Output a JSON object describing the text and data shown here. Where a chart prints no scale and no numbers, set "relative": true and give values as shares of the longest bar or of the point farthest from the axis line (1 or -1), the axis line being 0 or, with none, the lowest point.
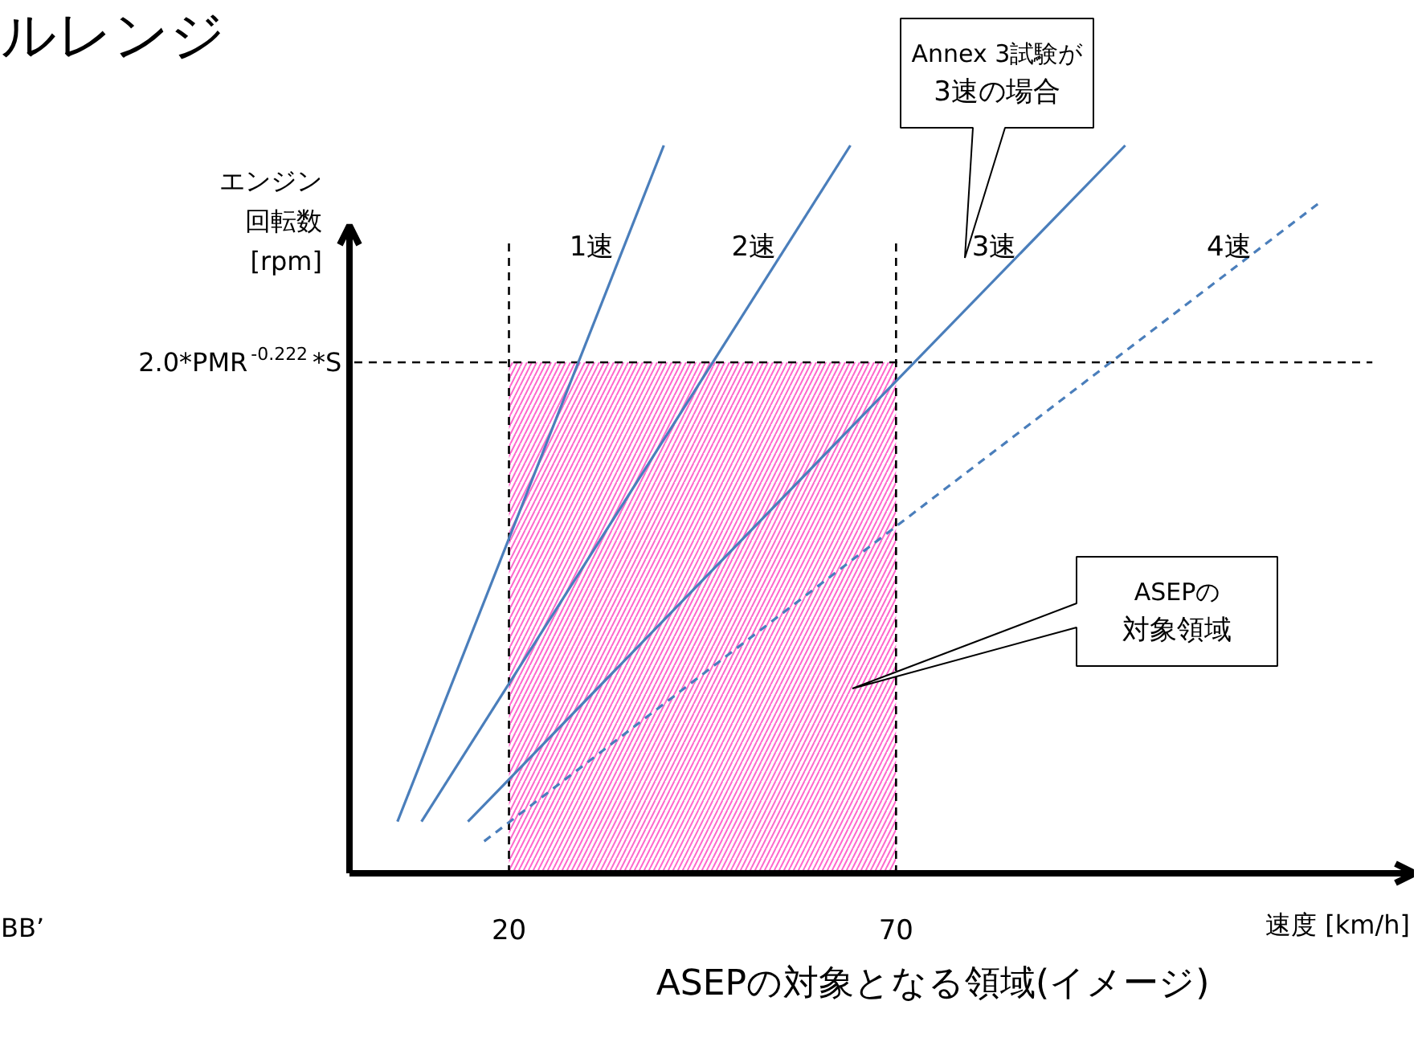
{
  "chart_data": {
    "type": "line",
    "title": "ルレンジ",
    "xlabel": "速度 [km/h]",
    "ylabel": "エンジン回転数[rpm]",
    "relative": true,
    "xlim": [
      -0.6,
      137
    ],
    "xticks": [
      20,
      70
    ],
    "grid": false,
    "series": [
      {
        "name": "1速",
        "color": "#4a7ebb",
        "x": [
          5.6,
          40.0
        ],
        "values": [
          0.071,
          1.0
        ]
      },
      {
        "name": "2速",
        "color": "#4a7ebb",
        "x": [
          8.7,
          64.1
        ],
        "values": [
          0.071,
          1.0
        ]
      },
      {
        "name": "3速",
        "color": "#4a7ebb",
        "x": [
          14.7,
          99.6
        ],
        "values": [
          0.071,
          1.0
        ]
      },
      {
        "name": "4速",
        "color": "#4a7ebb",
        "x": [
          16.8,
          124.9
        ],
        "values": [
          0.044,
          0.923
        ],
        "line_style": "dashed"
      }
    ],
    "ref_lines": [
      {
        "axis": "y",
        "value": 0.702,
        "label": "2.0*PMR$^{-0.222}$*S",
        "color": "#000000",
        "line_style": "dashed"
      },
      {
        "axis": "x",
        "value": 20,
        "color": "#000000",
        "line_style": "dashed"
      },
      {
        "axis": "x",
        "value": 70,
        "color": "#000000",
        "line_style": "dashed"
      }
    ],
    "bands": [
      {
        "axis": "x",
        "from": 20,
        "to": 70,
        "color": "#ff66cc"
      }
    ],
    "annotations": [
      "Annex 3試験が3速の場合",
      "ASEPの対象領域",
      "ASEPの対象となる領域(イメージ)",
      "BB’"
    ]
  }
}
